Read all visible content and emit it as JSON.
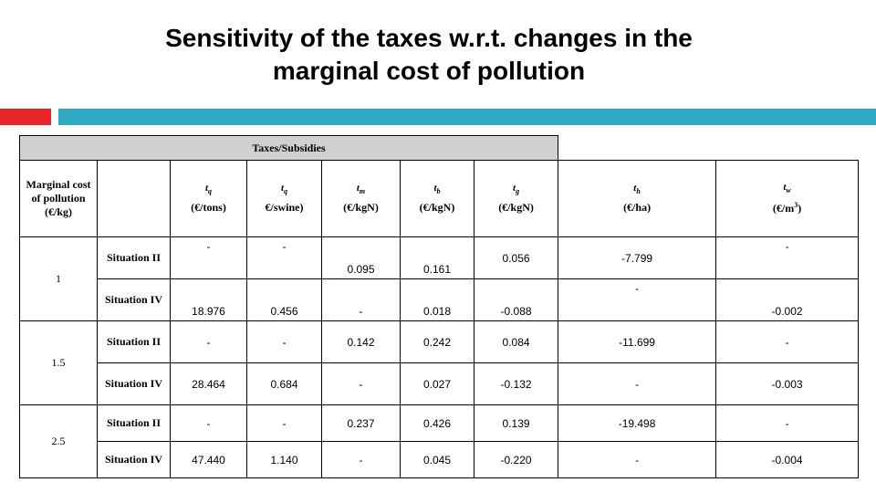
{
  "slide": {
    "title_line1": "Sensitivity of the taxes w.r.t. changes in the",
    "title_line2": "marginal cost of pollution",
    "accent_red": "#e8252b",
    "accent_teal": "#2ea9c4"
  },
  "table": {
    "group_header": "Taxes/Subsidies",
    "first_col_header": "Marginal cost of pollution (€/kg)",
    "columns": [
      {
        "symbol": "tq",
        "unit": "(€/tons)"
      },
      {
        "symbol": "tq",
        "unit": "€/swine)"
      },
      {
        "symbol": "tm",
        "unit": "(€/kgN)"
      },
      {
        "symbol": "tb",
        "unit": "(€/kgN)"
      },
      {
        "symbol": "tg",
        "unit": "(€/kgN)"
      },
      {
        "symbol": "th",
        "unit": "(€/ha)"
      },
      {
        "symbol": "tw",
        "unit": "(€/m",
        "unit_sup": "3",
        "unit_end": ")"
      }
    ],
    "rows": [
      {
        "mc": "1",
        "situation": "Situation II",
        "values": [
          "-",
          "-",
          "0.095",
          "0.161",
          "0.056",
          "-7.799",
          "-"
        ]
      },
      {
        "mc": "",
        "situation": "Situation IV",
        "values": [
          "18.976",
          "0.456",
          "-",
          "0.018",
          "-0.088",
          "-",
          "-0.002"
        ]
      },
      {
        "mc": "1.5",
        "situation": "Situation II",
        "values": [
          "-",
          "-",
          "0.142",
          "0.242",
          "0.084",
          "-11.699",
          "-"
        ]
      },
      {
        "mc": "",
        "situation": "Situation IV",
        "values": [
          "28.464",
          "0.684",
          "-",
          "0.027",
          "-0.132",
          "-",
          "-0.003"
        ]
      },
      {
        "mc": "2.5",
        "situation": "Situation II",
        "values": [
          "-",
          "-",
          "0.237",
          "0.426",
          "0.139",
          "-19.498",
          "-"
        ]
      },
      {
        "mc": "",
        "situation": "Situation IV",
        "values": [
          "47.440",
          "1.140",
          "-",
          "0.045",
          "-0.220",
          "-",
          "-0.004"
        ]
      }
    ]
  }
}
